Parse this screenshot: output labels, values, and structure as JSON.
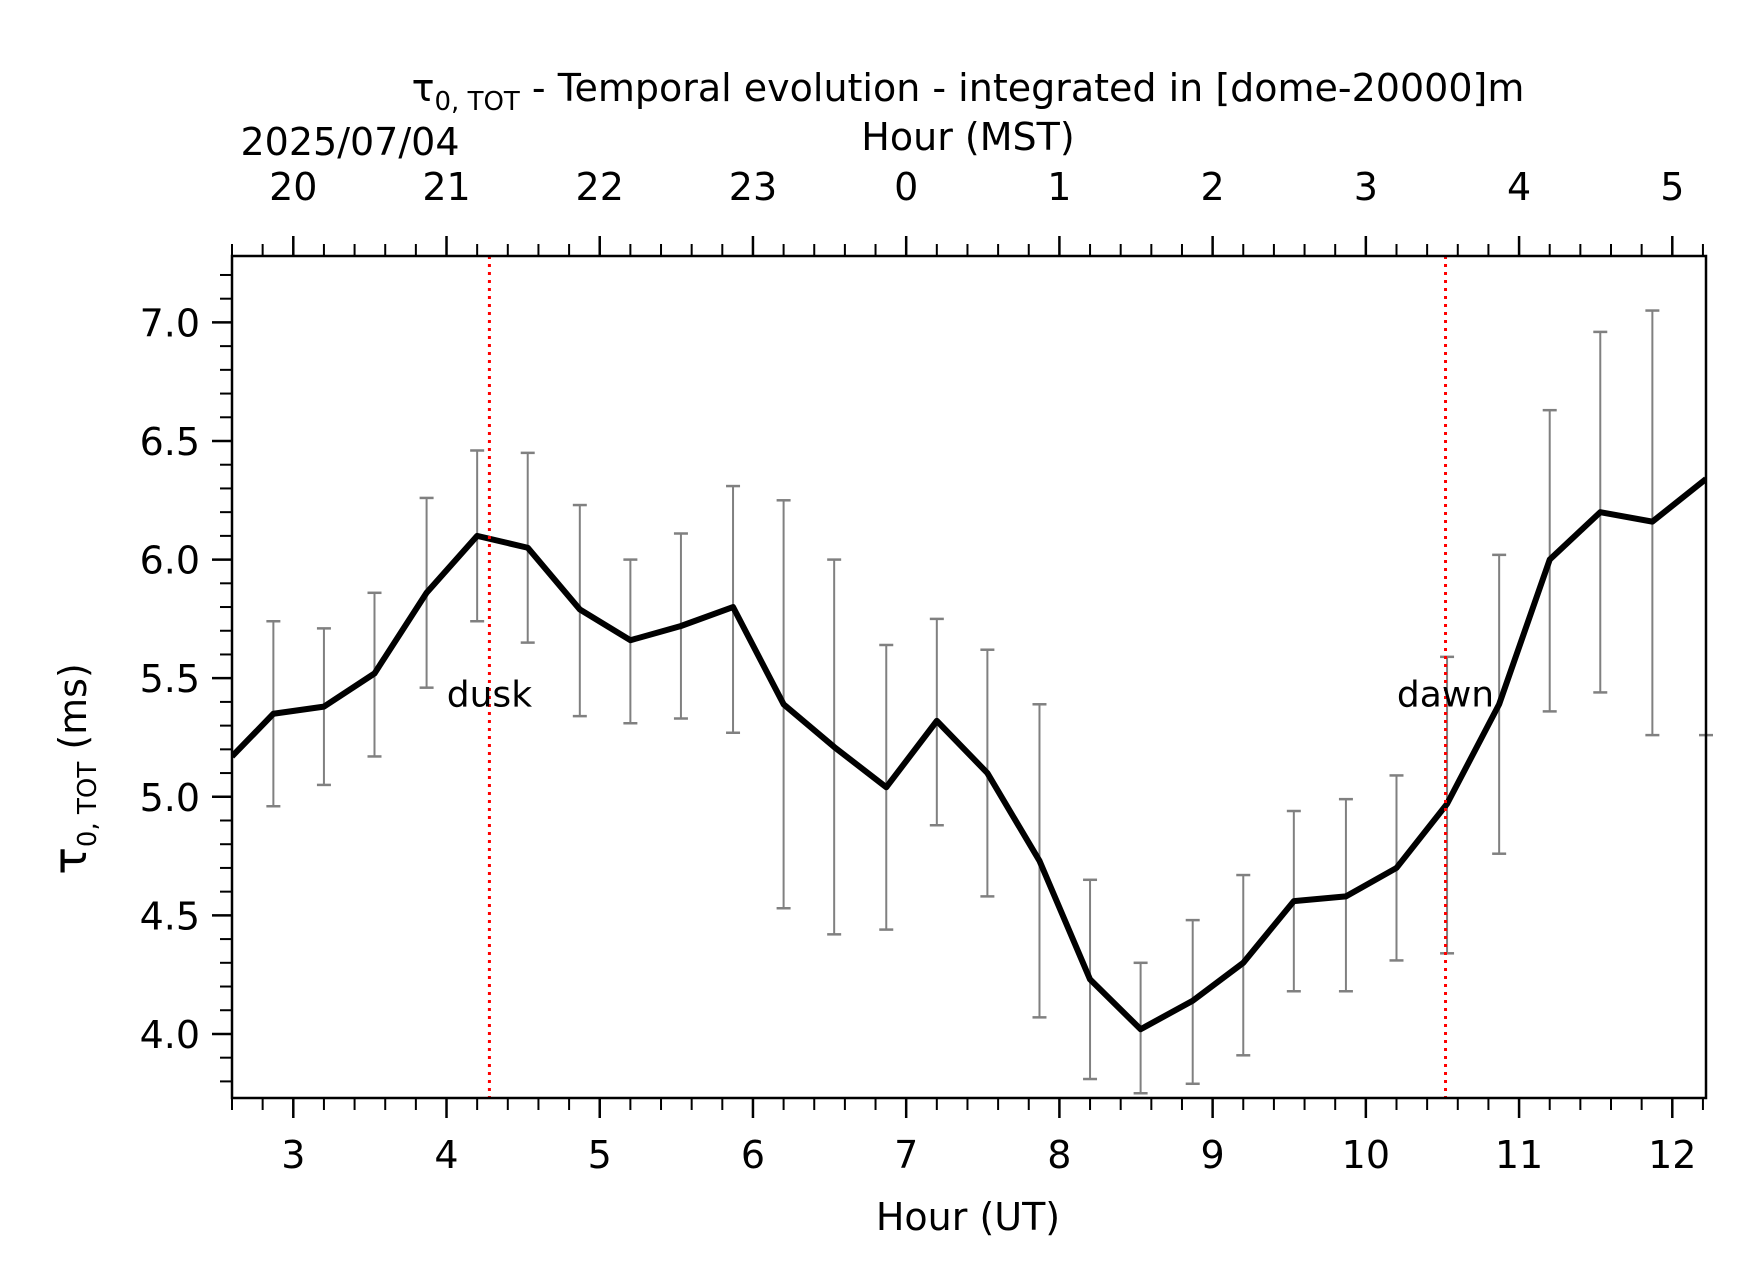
{
  "chart_data": {
    "type": "line",
    "title_symbol": "τ",
    "title_subscript": "0, TOT",
    "title_rest": " - Temporal evolution - integrated in [dome-20000]m",
    "date_label": "2025/07/04",
    "top_axis_label": "Hour (MST)",
    "xlabel": "Hour (UT)",
    "ylabel_symbol": "τ",
    "ylabel_subscript": "0, TOT",
    "ylabel_rest": " (ms)",
    "xlim": [
      2.6,
      12.22
    ],
    "ylim": [
      3.73,
      7.28
    ],
    "x_ticks": [
      3,
      4,
      5,
      6,
      7,
      8,
      9,
      10,
      11,
      12
    ],
    "x_tick_labels": [
      "3",
      "4",
      "5",
      "6",
      "7",
      "8",
      "9",
      "10",
      "11",
      "12"
    ],
    "y_ticks": [
      4.0,
      4.5,
      5.0,
      5.5,
      6.0,
      6.5,
      7.0
    ],
    "y_tick_labels": [
      "4.0",
      "4.5",
      "5.0",
      "5.5",
      "6.0",
      "6.5",
      "7.0"
    ],
    "top_ticks_ut": [
      3,
      4,
      5,
      6,
      7,
      8,
      9,
      10,
      11,
      12
    ],
    "top_tick_labels": [
      "20",
      "21",
      "22",
      "23",
      "0",
      "1",
      "2",
      "3",
      "4",
      "5"
    ],
    "series": [
      {
        "color": "#000000",
        "x": [
          2.6,
          2.87,
          3.2,
          3.53,
          3.87,
          4.2,
          4.53,
          4.87,
          5.2,
          5.53,
          5.87,
          6.2,
          6.53,
          6.87,
          7.2,
          7.53,
          7.87,
          8.2,
          8.53,
          8.87,
          9.2,
          9.53,
          9.87,
          10.2,
          10.53,
          10.87,
          11.2,
          11.53,
          11.87,
          12.22
        ],
        "y": [
          5.17,
          5.35,
          5.38,
          5.52,
          5.86,
          6.1,
          6.05,
          5.79,
          5.66,
          5.72,
          5.8,
          5.39,
          5.21,
          5.04,
          5.32,
          5.1,
          4.73,
          4.23,
          4.02,
          4.14,
          4.3,
          4.56,
          4.58,
          4.7,
          4.97,
          5.39,
          6.0,
          6.2,
          6.16,
          6.34
        ]
      }
    ],
    "error_bars": {
      "color": "#808080",
      "x": [
        2.87,
        3.2,
        3.53,
        3.87,
        4.2,
        4.53,
        4.87,
        5.2,
        5.53,
        5.87,
        6.2,
        6.53,
        6.87,
        7.2,
        7.53,
        7.87,
        8.2,
        8.53,
        8.87,
        9.2,
        9.53,
        9.87,
        10.2,
        10.53,
        10.87,
        11.2,
        11.53,
        11.87,
        12.22
      ],
      "low": [
        4.96,
        5.05,
        5.17,
        5.46,
        5.74,
        5.65,
        5.34,
        5.31,
        5.33,
        5.27,
        4.53,
        4.42,
        4.44,
        4.88,
        4.58,
        4.07,
        3.81,
        3.75,
        3.79,
        3.91,
        4.18,
        4.18,
        4.31,
        4.34,
        4.76,
        5.36,
        5.44,
        5.26,
        5.26
      ],
      "high": [
        5.74,
        5.71,
        5.86,
        6.26,
        6.46,
        6.45,
        6.23,
        6.0,
        6.11,
        6.31,
        6.25,
        6.0,
        5.64,
        5.75,
        5.62,
        5.39,
        4.65,
        4.3,
        4.48,
        4.67,
        4.94,
        4.99,
        5.09,
        5.59,
        6.02,
        6.63,
        6.96,
        7.05,
        7.28
      ]
    },
    "annotations": [
      {
        "label": "dusk",
        "x": 4.28,
        "color": "#ff0000"
      },
      {
        "label": "dawn",
        "x": 10.52,
        "color": "#ff0000"
      }
    ],
    "grid": false,
    "legend": "none"
  }
}
